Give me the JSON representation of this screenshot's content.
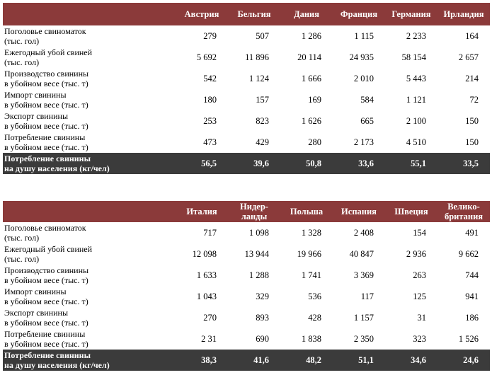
{
  "tables": [
    {
      "countries": [
        "Австрия",
        "Бельгия",
        "Дания",
        "Франция",
        "Германия",
        "Ирландия"
      ],
      "rows": [
        {
          "label": "Поголовье свиноматок\n(тыс. гол)",
          "values": [
            "279",
            "507",
            "1 286",
            "1 115",
            "2 233",
            "164"
          ]
        },
        {
          "label": "Ежегодный убой свиней\n(тыс. гол)",
          "values": [
            "5 692",
            "11 896",
            "20 114",
            "24 935",
            "58 154",
            "2 657"
          ]
        },
        {
          "label": "Производство свинины\nв убойном весе (тыс. т)",
          "values": [
            "542",
            "1 124",
            "1 666",
            "2 010",
            "5 443",
            "214"
          ]
        },
        {
          "label": "Импорт свинины\nв убойном весе (тыс. т)",
          "values": [
            "180",
            "157",
            "169",
            "584",
            "1 121",
            "72"
          ]
        },
        {
          "label": "Экспорт свинины\nв убойном весе (тыс. т)",
          "values": [
            "253",
            "823",
            "1 626",
            "665",
            "2 100",
            "150"
          ]
        },
        {
          "label": "Потребление свинины\nв убойном весе (тыс. т)",
          "values": [
            "473",
            "429",
            "280",
            "2 173",
            "4 510",
            "150"
          ]
        }
      ],
      "total": {
        "label": "Потребление свинины\nна душу населения (кг/чел)",
        "values": [
          "56,5",
          "39,6",
          "50,8",
          "33,6",
          "55,1",
          "33,5"
        ]
      }
    },
    {
      "countries": [
        "Италия",
        "Нидер-\nланды",
        "Польша",
        "Испания",
        "Швеция",
        "Велико-\nбритания"
      ],
      "rows": [
        {
          "label": "Поголовье свиноматок\n(тыс. гол)",
          "values": [
            "717",
            "1 098",
            "1 328",
            "2 408",
            "154",
            "491"
          ]
        },
        {
          "label": "Ежегодный убой свиней\n(тыс. гол)",
          "values": [
            "12 098",
            "13 944",
            "19 966",
            "40 847",
            "2 936",
            "9 662"
          ]
        },
        {
          "label": "Производство свинины\nв убойном весе (тыс. т)",
          "values": [
            "1 633",
            "1 288",
            "1 741",
            "3 369",
            "263",
            "744"
          ]
        },
        {
          "label": "Импорт свинины\nв убойном весе (тыс. т)",
          "values": [
            "1 043",
            "329",
            "536",
            "117",
            "125",
            "941"
          ]
        },
        {
          "label": "Экспорт свинины\nв убойном весе (тыс. т)",
          "values": [
            "270",
            "893",
            "428",
            "1 157",
            "31",
            "186"
          ]
        },
        {
          "label": "Потребление свинины\nв убойном весе (тыс. т)",
          "values": [
            "2 31",
            "690",
            "1 838",
            "2 350",
            "323",
            "1 526"
          ]
        }
      ],
      "total": {
        "label": "Потребление свинины\nна душу населения (кг/чел)",
        "values": [
          "38,3",
          "41,6",
          "48,2",
          "51,1",
          "34,6",
          "24,6"
        ]
      }
    }
  ],
  "colors": {
    "header_bg": "#8b3a3a",
    "total_bg": "#3b3b3b",
    "header_text": "#ffffff"
  }
}
